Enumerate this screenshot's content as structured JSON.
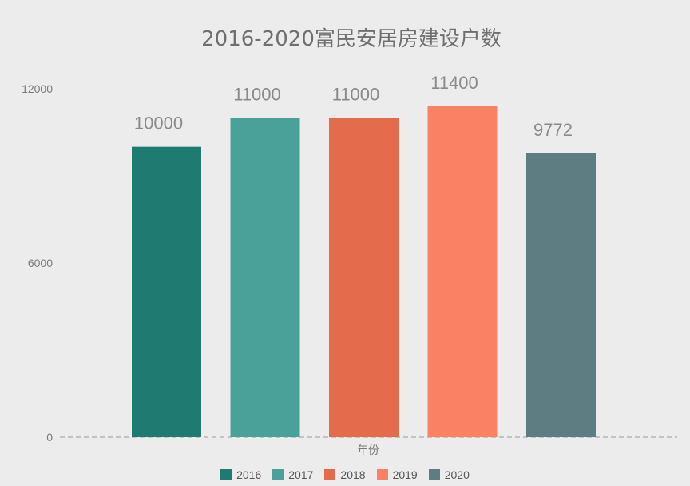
{
  "chart_data": {
    "type": "bar",
    "title": "2016-2020富民安居房建设户数",
    "xlabel": "年份",
    "ylabel": "",
    "ylim": [
      0,
      12000
    ],
    "yticks": [
      "0",
      "6000",
      "12000"
    ],
    "categories": [
      "2016",
      "2017",
      "2018",
      "2019",
      "2020"
    ],
    "values": [
      10000,
      11000,
      11000,
      11400,
      9772
    ],
    "value_labels": [
      "10000",
      "11000",
      "11000",
      "11400",
      "9772"
    ],
    "colors": [
      "#1f7b72",
      "#4aa199",
      "#e56b4d",
      "#fa8164",
      "#5d7d83"
    ],
    "legend": {
      "position": "bottom",
      "entries": [
        "2016",
        "2017",
        "2018",
        "2019",
        "2020"
      ]
    },
    "grid": false
  }
}
